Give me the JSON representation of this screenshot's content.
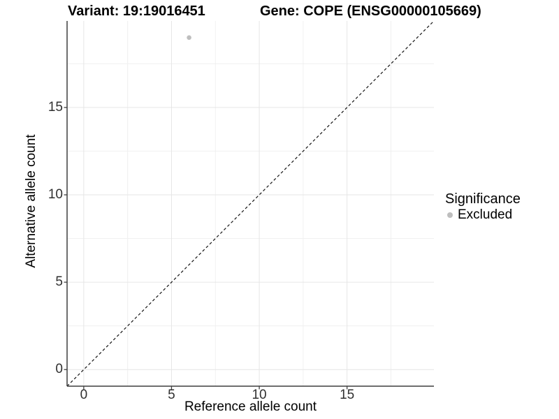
{
  "chart_data": {
    "type": "scatter",
    "title_left": "Variant: 19:19016451",
    "title_right": "Gene: COPE (ENSG00000105669)",
    "xlabel": "Reference allele count",
    "ylabel": "Alternative allele count",
    "xlim": [
      -0.95,
      19.95
    ],
    "ylim": [
      -0.95,
      19.95
    ],
    "x_ticks": [
      0,
      5,
      10,
      15
    ],
    "y_ticks": [
      0,
      5,
      10,
      15
    ],
    "x_minor_ticks": [
      2.5,
      7.5,
      12.5,
      17.5
    ],
    "y_minor_ticks": [
      2.5,
      7.5,
      12.5,
      17.5
    ],
    "grid": "major+minor",
    "points": [
      {
        "x": 6,
        "y": 19,
        "significance": "Excluded",
        "color": "#bebebe"
      }
    ],
    "reference_line": {
      "type": "identity y=x",
      "style": "dashed",
      "color": "#141414"
    },
    "legend": {
      "title": "Significance",
      "position": "right",
      "entries": [
        {
          "label": "Excluded",
          "marker": "circle",
          "color": "#bebebe"
        }
      ]
    },
    "style": {
      "background": "#ffffff",
      "major_grid_color": "#e6e6e6",
      "minor_grid_color": "#f0f0f0",
      "axis_line_color": "#3f3f3f",
      "tick_text_color": "#303030",
      "text_color": "#000000"
    }
  }
}
